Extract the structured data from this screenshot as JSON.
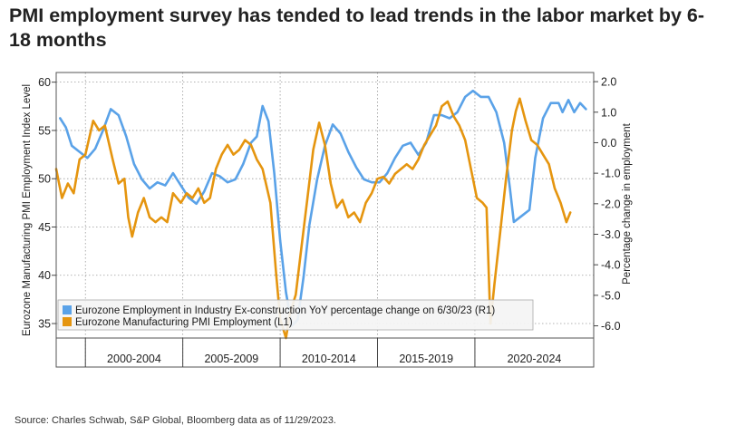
{
  "title": "PMI employment survey has tended to lead trends in the labor market by 6-18 months",
  "source": "Source: Charles Schwab, S&P Global, Bloomberg data as of 11/29/2023.",
  "chart_data": {
    "type": "line",
    "left_axis": {
      "label": "Eurozone Manufacturing PMI Employment Index Level",
      "ylim": [
        33.5,
        61
      ],
      "ticks": [
        {
          "value": 35,
          "label": "35"
        },
        {
          "value": 40,
          "label": "40"
        },
        {
          "value": 45,
          "label": "45"
        },
        {
          "value": 50,
          "label": "50"
        },
        {
          "value": 55,
          "label": "55"
        },
        {
          "value": 60,
          "label": "60"
        }
      ]
    },
    "right_axis": {
      "label": "Percentage change in employment",
      "ylim": [
        -6.4,
        2.3
      ],
      "ticks": [
        {
          "value": 2,
          "label": "2.0"
        },
        {
          "value": 1,
          "label": "1.0"
        },
        {
          "value": 0,
          "label": "0.0"
        },
        {
          "value": -1,
          "label": "-1.0"
        },
        {
          "value": -2,
          "label": "-2.0"
        },
        {
          "value": -3,
          "label": "-3.0"
        },
        {
          "value": -4,
          "label": "-4.0"
        },
        {
          "value": -5,
          "label": "-5.0"
        },
        {
          "value": -6,
          "label": "-6.0"
        }
      ]
    },
    "xlim": [
      1998,
      2025.6
    ],
    "x_periods": [
      {
        "label": "2000-2004",
        "start": 1999.5,
        "end": 2004.5
      },
      {
        "label": "2005-2009",
        "start": 2004.5,
        "end": 2009.5
      },
      {
        "label": "2010-2014",
        "start": 2009.5,
        "end": 2014.5
      },
      {
        "label": "2015-2019",
        "start": 2014.5,
        "end": 2019.5
      },
      {
        "label": "2020-2024",
        "start": 2019.5,
        "end": 2025.6
      }
    ],
    "legend_position": "bottom-left",
    "grid": true,
    "series": [
      {
        "name": "Eurozone Employment in Industry Ex-construction YoY percentage change on 6/30/23 (R1)",
        "axis": "right",
        "color": "#5aa2e8",
        "points": [
          [
            1998.2,
            0.8
          ],
          [
            1998.5,
            0.5
          ],
          [
            1998.8,
            -0.1
          ],
          [
            1999.2,
            -0.3
          ],
          [
            1999.6,
            -0.5
          ],
          [
            2000.0,
            -0.2
          ],
          [
            2000.4,
            0.4
          ],
          [
            2000.8,
            1.1
          ],
          [
            2001.2,
            0.9
          ],
          [
            2001.6,
            0.2
          ],
          [
            2002.0,
            -0.7
          ],
          [
            2002.4,
            -1.2
          ],
          [
            2002.8,
            -1.5
          ],
          [
            2003.2,
            -1.3
          ],
          [
            2003.6,
            -1.4
          ],
          [
            2004.0,
            -1.0
          ],
          [
            2004.4,
            -1.4
          ],
          [
            2004.8,
            -1.8
          ],
          [
            2005.2,
            -2.0
          ],
          [
            2005.6,
            -1.6
          ],
          [
            2006.0,
            -1.0
          ],
          [
            2006.4,
            -1.1
          ],
          [
            2006.8,
            -1.3
          ],
          [
            2007.2,
            -1.2
          ],
          [
            2007.6,
            -0.7
          ],
          [
            2008.0,
            0.0
          ],
          [
            2008.3,
            0.2
          ],
          [
            2008.6,
            1.2
          ],
          [
            2008.9,
            0.7
          ],
          [
            2009.2,
            -1.0
          ],
          [
            2009.5,
            -3.2
          ],
          [
            2009.8,
            -4.9
          ],
          [
            2010.1,
            -6.0
          ],
          [
            2010.4,
            -5.8
          ],
          [
            2010.7,
            -4.4
          ],
          [
            2011.0,
            -2.7
          ],
          [
            2011.4,
            -1.2
          ],
          [
            2011.8,
            -0.1
          ],
          [
            2012.2,
            0.6
          ],
          [
            2012.6,
            0.3
          ],
          [
            2013.0,
            -0.3
          ],
          [
            2013.4,
            -0.8
          ],
          [
            2013.8,
            -1.2
          ],
          [
            2014.2,
            -1.3
          ],
          [
            2014.6,
            -1.3
          ],
          [
            2015.0,
            -1.0
          ],
          [
            2015.4,
            -0.5
          ],
          [
            2015.8,
            -0.1
          ],
          [
            2016.2,
            0.0
          ],
          [
            2016.6,
            -0.4
          ],
          [
            2017.0,
            0.0
          ],
          [
            2017.4,
            0.9
          ],
          [
            2017.8,
            0.9
          ],
          [
            2018.2,
            0.8
          ],
          [
            2018.6,
            1.0
          ],
          [
            2019.0,
            1.5
          ],
          [
            2019.4,
            1.7
          ],
          [
            2019.8,
            1.5
          ],
          [
            2020.2,
            1.5
          ],
          [
            2020.6,
            1.0
          ],
          [
            2021.0,
            0.0
          ],
          [
            2021.3,
            -1.5
          ],
          [
            2021.5,
            -2.6
          ],
          [
            2021.9,
            -2.4
          ],
          [
            2022.3,
            -2.2
          ],
          [
            2022.6,
            -0.5
          ],
          [
            2023.0,
            0.8
          ],
          [
            2023.4,
            1.3
          ],
          [
            2023.8,
            1.3
          ],
          [
            2024.0,
            1.0
          ],
          [
            2024.3,
            1.4
          ],
          [
            2024.6,
            1.0
          ],
          [
            2024.9,
            1.3
          ],
          [
            2025.2,
            1.1
          ]
        ]
      },
      {
        "name": "Eurozone Manufacturing PMI Employment (L1)",
        "axis": "left",
        "color": "#e5950f",
        "points": [
          [
            1998.0,
            51.0
          ],
          [
            1998.3,
            48.0
          ],
          [
            1998.6,
            49.5
          ],
          [
            1998.9,
            48.5
          ],
          [
            1999.2,
            52.0
          ],
          [
            1999.5,
            52.5
          ],
          [
            1999.9,
            56.0
          ],
          [
            2000.2,
            55.0
          ],
          [
            2000.5,
            55.5
          ],
          [
            2000.9,
            52.0
          ],
          [
            2001.2,
            49.5
          ],
          [
            2001.5,
            50.0
          ],
          [
            2001.7,
            46.0
          ],
          [
            2001.9,
            44.0
          ],
          [
            2002.2,
            46.5
          ],
          [
            2002.5,
            48.0
          ],
          [
            2002.8,
            46.0
          ],
          [
            2003.1,
            45.5
          ],
          [
            2003.4,
            46.0
          ],
          [
            2003.7,
            45.5
          ],
          [
            2004.0,
            48.5
          ],
          [
            2004.4,
            47.5
          ],
          [
            2004.7,
            48.5
          ],
          [
            2005.0,
            48.0
          ],
          [
            2005.3,
            49.0
          ],
          [
            2005.6,
            47.5
          ],
          [
            2005.9,
            48.0
          ],
          [
            2006.2,
            51.0
          ],
          [
            2006.5,
            52.5
          ],
          [
            2006.8,
            53.5
          ],
          [
            2007.1,
            52.5
          ],
          [
            2007.4,
            53.0
          ],
          [
            2007.7,
            54.0
          ],
          [
            2008.0,
            53.5
          ],
          [
            2008.3,
            52.0
          ],
          [
            2008.6,
            51.0
          ],
          [
            2009.0,
            47.5
          ],
          [
            2009.3,
            40.0
          ],
          [
            2009.5,
            35.5
          ],
          [
            2009.8,
            33.5
          ],
          [
            2010.0,
            36.0
          ],
          [
            2010.3,
            38.0
          ],
          [
            2010.6,
            43.0
          ],
          [
            2010.9,
            48.0
          ],
          [
            2011.2,
            53.0
          ],
          [
            2011.5,
            55.8
          ],
          [
            2011.8,
            53.5
          ],
          [
            2012.1,
            49.5
          ],
          [
            2012.4,
            47.0
          ],
          [
            2012.7,
            47.8
          ],
          [
            2013.0,
            46.0
          ],
          [
            2013.3,
            46.5
          ],
          [
            2013.6,
            45.5
          ],
          [
            2013.9,
            47.5
          ],
          [
            2014.2,
            48.5
          ],
          [
            2014.5,
            50.0
          ],
          [
            2014.8,
            50.2
          ],
          [
            2015.1,
            49.5
          ],
          [
            2015.4,
            50.5
          ],
          [
            2015.7,
            51.0
          ],
          [
            2016.0,
            51.5
          ],
          [
            2016.3,
            51.0
          ],
          [
            2016.6,
            52.0
          ],
          [
            2016.9,
            53.5
          ],
          [
            2017.2,
            54.5
          ],
          [
            2017.5,
            55.5
          ],
          [
            2017.8,
            57.5
          ],
          [
            2018.1,
            58.0
          ],
          [
            2018.4,
            56.5
          ],
          [
            2018.7,
            55.5
          ],
          [
            2019.0,
            54.0
          ],
          [
            2019.3,
            51.0
          ],
          [
            2019.6,
            48.0
          ],
          [
            2019.9,
            47.5
          ],
          [
            2020.1,
            47.0
          ],
          [
            2020.3,
            35.0
          ],
          [
            2020.5,
            39.0
          ],
          [
            2020.8,
            44.5
          ],
          [
            2021.1,
            50.0
          ],
          [
            2021.4,
            55.0
          ],
          [
            2021.6,
            57.0
          ],
          [
            2021.8,
            58.3
          ],
          [
            2022.1,
            56.0
          ],
          [
            2022.4,
            54.0
          ],
          [
            2022.7,
            53.5
          ],
          [
            2023.0,
            52.5
          ],
          [
            2023.3,
            51.5
          ],
          [
            2023.6,
            49.0
          ],
          [
            2023.9,
            47.5
          ],
          [
            2024.2,
            45.5
          ],
          [
            2024.4,
            46.5
          ]
        ]
      }
    ]
  }
}
